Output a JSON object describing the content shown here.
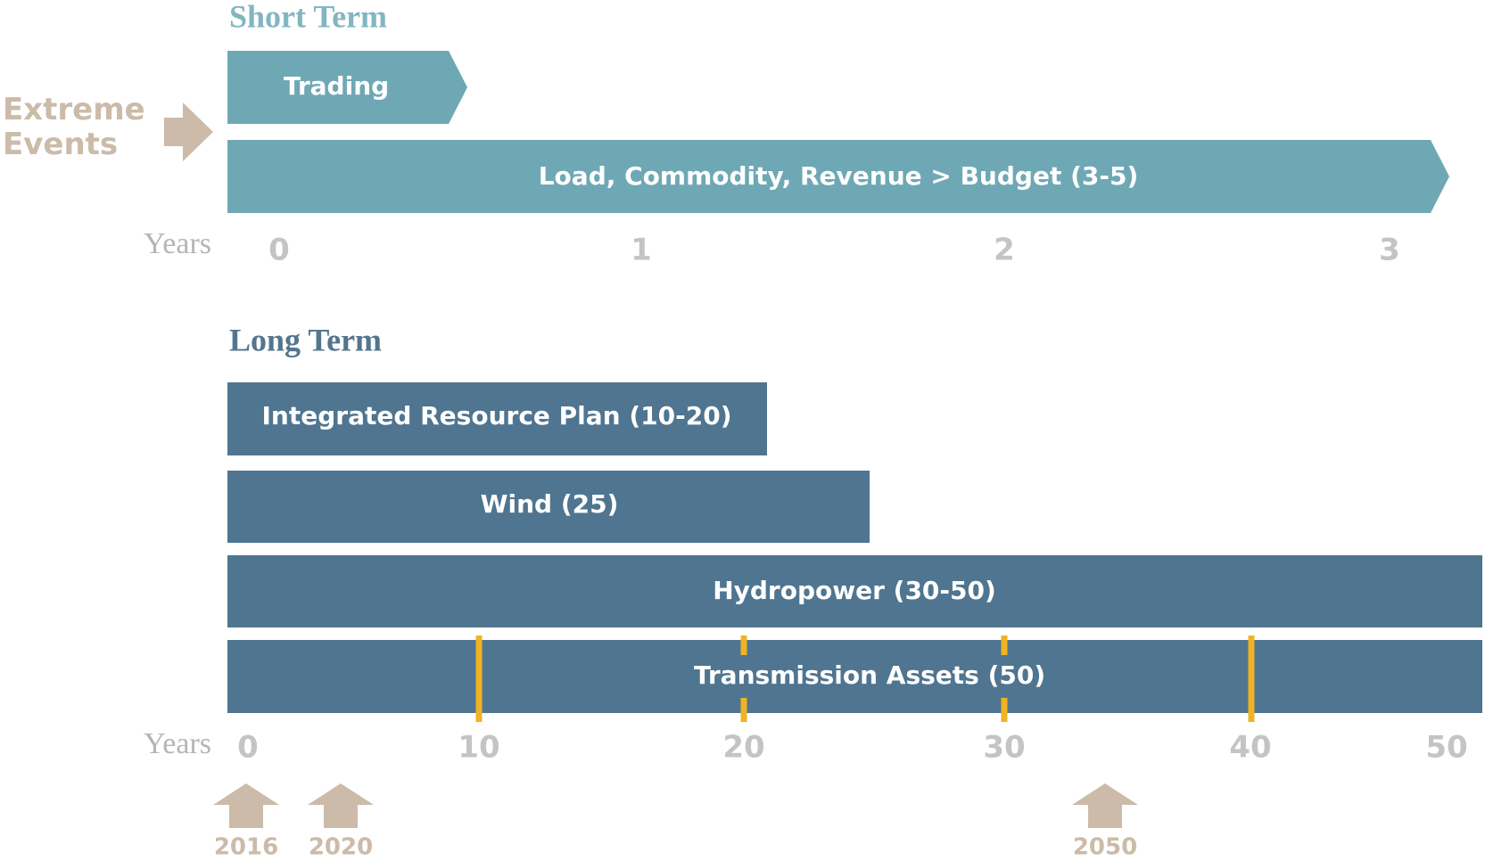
{
  "short_term": {
    "title": "Short Term",
    "side_label": "Extreme Events",
    "bars": [
      "Trading",
      "Load, Commodity, Revenue > Budget (3-5)"
    ],
    "axis_label": "Years",
    "ticks": [
      "0",
      "1",
      "2",
      "3"
    ]
  },
  "long_term": {
    "title": "Long Term",
    "bars": [
      "Integrated Resource Plan (10-20)",
      "Wind (25)",
      "Hydropower (30-50)",
      "Transmission Assets (50)"
    ],
    "axis_label": "Years",
    "ticks": [
      "0",
      "10",
      "20",
      "30",
      "40",
      "50"
    ],
    "milestones": [
      "2016",
      "2020",
      "2050"
    ]
  }
}
